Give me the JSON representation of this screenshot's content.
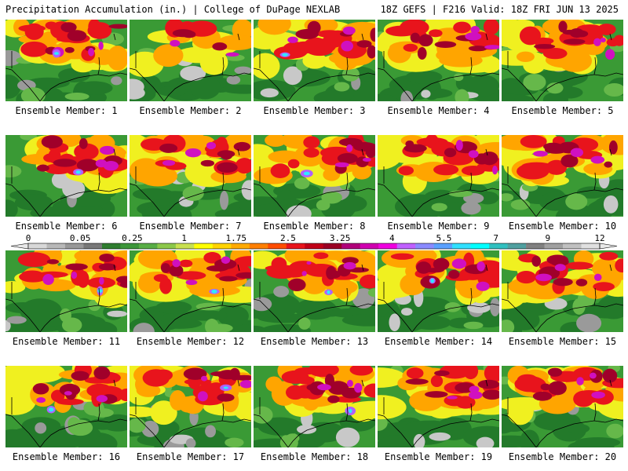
{
  "header": {
    "title_left": "Precipitation Accumulation (in.) | College of DuPage NEXLAB",
    "title_right": "18Z GEFS | F216 Valid: 18Z FRI JUN 13 2025"
  },
  "colorbar": {
    "tick_labels": [
      "0",
      "0.05",
      "0.25",
      "1",
      "1.75",
      "2.5",
      "3.25",
      "4",
      "5.5",
      "7",
      "9",
      "12"
    ],
    "colors": [
      "#d8d8d8",
      "#b8b8b8",
      "#989898",
      "#787878",
      "#2f7d2f",
      "#3d963a",
      "#58ad45",
      "#8cc84a",
      "#c8e050",
      "#ffff00",
      "#ffd400",
      "#ffaa00",
      "#ff7f00",
      "#ff4d00",
      "#e8141c",
      "#c00018",
      "#9a0024",
      "#b0007a",
      "#d000b0",
      "#f000e0",
      "#c060ff",
      "#8a8aff",
      "#5aa0ff",
      "#30e0ff",
      "#00ffff",
      "#30c0c0",
      "#50a0a0",
      "#808080",
      "#a0a0a0",
      "#c0c0c0",
      "#e0e0e0"
    ]
  },
  "map_colors": {
    "green_dark": "#237a2a",
    "green": "#3a9a35",
    "green_light": "#66b84a",
    "gray": "#9a9a9a",
    "gray_light": "#c8c8c8",
    "yellow": "#f0f020",
    "orange": "#ffa500",
    "red": "#e8141c",
    "dark_red": "#a0002a",
    "magenta": "#d010c0",
    "violet": "#b060ff",
    "cyan": "#30e8ff"
  },
  "members": [
    {
      "label": "Ensemble Member: 1"
    },
    {
      "label": "Ensemble Member: 2"
    },
    {
      "label": "Ensemble Member: 3"
    },
    {
      "label": "Ensemble Member: 4"
    },
    {
      "label": "Ensemble Member: 5"
    },
    {
      "label": "Ensemble Member: 6"
    },
    {
      "label": "Ensemble Member: 7"
    },
    {
      "label": "Ensemble Member: 8"
    },
    {
      "label": "Ensemble Member: 9"
    },
    {
      "label": "Ensemble Member: 10"
    },
    {
      "label": "Ensemble Member: 11"
    },
    {
      "label": "Ensemble Member: 12"
    },
    {
      "label": "Ensemble Member: 13"
    },
    {
      "label": "Ensemble Member: 14"
    },
    {
      "label": "Ensemble Member: 15"
    },
    {
      "label": "Ensemble Member: 16"
    },
    {
      "label": "Ensemble Member: 17"
    },
    {
      "label": "Ensemble Member: 18"
    },
    {
      "label": "Ensemble Member: 19"
    },
    {
      "label": "Ensemble Member: 20"
    }
  ]
}
